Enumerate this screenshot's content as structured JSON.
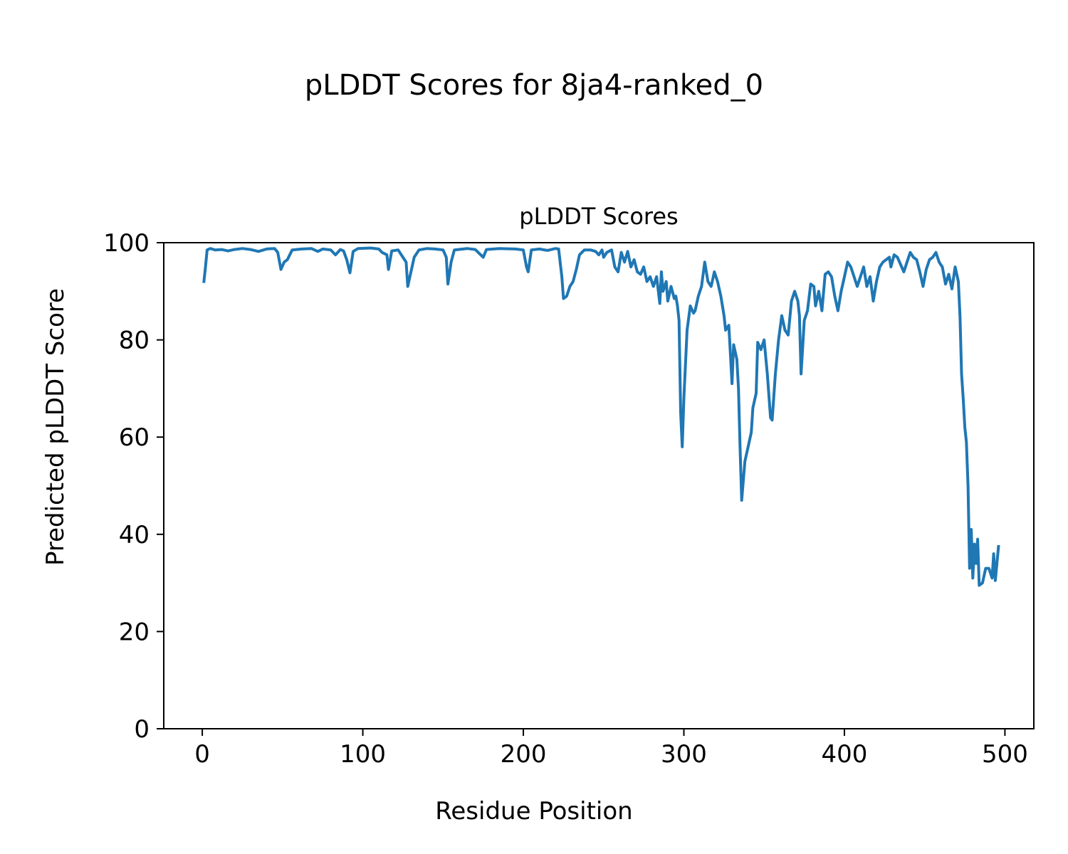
{
  "figure": {
    "suptitle": "pLDDT Scores for 8ja4-ranked_0"
  },
  "chart_data": {
    "type": "line",
    "title": "pLDDT Scores",
    "xlabel": "Residue Position",
    "ylabel": "Predicted pLDDT Score",
    "xlim": [
      -24,
      518
    ],
    "ylim": [
      0,
      100
    ],
    "xticks": [
      0,
      100,
      200,
      300,
      400,
      500
    ],
    "yticks": [
      0,
      20,
      40,
      60,
      80,
      100
    ],
    "grid": false,
    "line_color": "#1f77b4",
    "points": [
      [
        1,
        92
      ],
      [
        2,
        95
      ],
      [
        3,
        98.5
      ],
      [
        5,
        98.8
      ],
      [
        8,
        98.5
      ],
      [
        12,
        98.6
      ],
      [
        16,
        98.3
      ],
      [
        20,
        98.6
      ],
      [
        25,
        98.8
      ],
      [
        30,
        98.6
      ],
      [
        35,
        98.2
      ],
      [
        40,
        98.7
      ],
      [
        45,
        98.8
      ],
      [
        47,
        98
      ],
      [
        49,
        94.5
      ],
      [
        51,
        96
      ],
      [
        53,
        96.5
      ],
      [
        56,
        98.5
      ],
      [
        62,
        98.7
      ],
      [
        68,
        98.8
      ],
      [
        72,
        98.2
      ],
      [
        75,
        98.7
      ],
      [
        80,
        98.5
      ],
      [
        83,
        97.5
      ],
      [
        86,
        98.6
      ],
      [
        88,
        98.3
      ],
      [
        90,
        96.5
      ],
      [
        92,
        93.8
      ],
      [
        94,
        98.2
      ],
      [
        97,
        98.8
      ],
      [
        105,
        98.9
      ],
      [
        110,
        98.7
      ],
      [
        112,
        98
      ],
      [
        115,
        97.5
      ],
      [
        116,
        94.5
      ],
      [
        118,
        98.3
      ],
      [
        122,
        98.5
      ],
      [
        125,
        97
      ],
      [
        127,
        96
      ],
      [
        128,
        91
      ],
      [
        130,
        94
      ],
      [
        132,
        97
      ],
      [
        135,
        98.5
      ],
      [
        140,
        98.8
      ],
      [
        145,
        98.7
      ],
      [
        150,
        98.5
      ],
      [
        152,
        97
      ],
      [
        153,
        91.5
      ],
      [
        155,
        96
      ],
      [
        157,
        98.5
      ],
      [
        165,
        98.8
      ],
      [
        170,
        98.6
      ],
      [
        175,
        97
      ],
      [
        177,
        98.6
      ],
      [
        185,
        98.8
      ],
      [
        195,
        98.7
      ],
      [
        200,
        98.5
      ],
      [
        202,
        95
      ],
      [
        203,
        94
      ],
      [
        205,
        98.5
      ],
      [
        210,
        98.7
      ],
      [
        215,
        98.4
      ],
      [
        220,
        98.8
      ],
      [
        222,
        98.7
      ],
      [
        224,
        93
      ],
      [
        225,
        88.5
      ],
      [
        227,
        89
      ],
      [
        229,
        91
      ],
      [
        231,
        92
      ],
      [
        233,
        94.5
      ],
      [
        235,
        97.5
      ],
      [
        238,
        98.5
      ],
      [
        242,
        98.5
      ],
      [
        245,
        98.2
      ],
      [
        247,
        97.5
      ],
      [
        249,
        98.5
      ],
      [
        250,
        97
      ],
      [
        252,
        98
      ],
      [
        255,
        98.5
      ],
      [
        257,
        95
      ],
      [
        259,
        94
      ],
      [
        261,
        98
      ],
      [
        263,
        96
      ],
      [
        265,
        98.2
      ],
      [
        267,
        95
      ],
      [
        269,
        96.5
      ],
      [
        271,
        94
      ],
      [
        273,
        93.5
      ],
      [
        275,
        95
      ],
      [
        277,
        92
      ],
      [
        279,
        93
      ],
      [
        281,
        91
      ],
      [
        283,
        93
      ],
      [
        285,
        87.5
      ],
      [
        286,
        94
      ],
      [
        287,
        90
      ],
      [
        289,
        92
      ],
      [
        290,
        88
      ],
      [
        292,
        91
      ],
      [
        294,
        88.5
      ],
      [
        295,
        89
      ],
      [
        296,
        87
      ],
      [
        297,
        84
      ],
      [
        298,
        65
      ],
      [
        299,
        58
      ],
      [
        300,
        68
      ],
      [
        302,
        82
      ],
      [
        304,
        87
      ],
      [
        306,
        85.5
      ],
      [
        307,
        86
      ],
      [
        309,
        89
      ],
      [
        311,
        91
      ],
      [
        313,
        96
      ],
      [
        315,
        92
      ],
      [
        317,
        91
      ],
      [
        319,
        94
      ],
      [
        321,
        92
      ],
      [
        323,
        89
      ],
      [
        325,
        85
      ],
      [
        326,
        82
      ],
      [
        328,
        83
      ],
      [
        329,
        77
      ],
      [
        330,
        71
      ],
      [
        331,
        79
      ],
      [
        333,
        76
      ],
      [
        334,
        70
      ],
      [
        335,
        58
      ],
      [
        336,
        47
      ],
      [
        338,
        55
      ],
      [
        340,
        58
      ],
      [
        342,
        61
      ],
      [
        343,
        66
      ],
      [
        345,
        69
      ],
      [
        346,
        79.5
      ],
      [
        348,
        78
      ],
      [
        350,
        80
      ],
      [
        352,
        73
      ],
      [
        354,
        64
      ],
      [
        355,
        63.5
      ],
      [
        357,
        73
      ],
      [
        359,
        80
      ],
      [
        361,
        85
      ],
      [
        363,
        82
      ],
      [
        365,
        81
      ],
      [
        367,
        88
      ],
      [
        369,
        90
      ],
      [
        371,
        88
      ],
      [
        372,
        85
      ],
      [
        373,
        73
      ],
      [
        375,
        84
      ],
      [
        377,
        86
      ],
      [
        379,
        91.5
      ],
      [
        381,
        91
      ],
      [
        382,
        87
      ],
      [
        384,
        90
      ],
      [
        386,
        86
      ],
      [
        388,
        93.5
      ],
      [
        390,
        94
      ],
      [
        392,
        93
      ],
      [
        394,
        89
      ],
      [
        396,
        86
      ],
      [
        398,
        90
      ],
      [
        400,
        93
      ],
      [
        402,
        96
      ],
      [
        404,
        95
      ],
      [
        406,
        93
      ],
      [
        408,
        91
      ],
      [
        410,
        93
      ],
      [
        412,
        95
      ],
      [
        414,
        91
      ],
      [
        416,
        93
      ],
      [
        418,
        88
      ],
      [
        420,
        92
      ],
      [
        422,
        95
      ],
      [
        424,
        96
      ],
      [
        426,
        96.5
      ],
      [
        428,
        97
      ],
      [
        429,
        95
      ],
      [
        431,
        97.5
      ],
      [
        433,
        97
      ],
      [
        435,
        95.5
      ],
      [
        437,
        94
      ],
      [
        439,
        96
      ],
      [
        441,
        98
      ],
      [
        443,
        97
      ],
      [
        445,
        96.5
      ],
      [
        447,
        94
      ],
      [
        449,
        91
      ],
      [
        451,
        94.5
      ],
      [
        453,
        96.5
      ],
      [
        455,
        97
      ],
      [
        457,
        98
      ],
      [
        459,
        96
      ],
      [
        461,
        95
      ],
      [
        463,
        91.5
      ],
      [
        465,
        93.5
      ],
      [
        467,
        90.5
      ],
      [
        469,
        95
      ],
      [
        471,
        92
      ],
      [
        472,
        85
      ],
      [
        473,
        73
      ],
      [
        474,
        68
      ],
      [
        475,
        62
      ],
      [
        476,
        59
      ],
      [
        477,
        50
      ],
      [
        478,
        33
      ],
      [
        479,
        41
      ],
      [
        480,
        31
      ],
      [
        481,
        38
      ],
      [
        482,
        34
      ],
      [
        483,
        39
      ],
      [
        484,
        29.5
      ],
      [
        486,
        30
      ],
      [
        488,
        33
      ],
      [
        490,
        33
      ],
      [
        492,
        31
      ],
      [
        493,
        36
      ],
      [
        494,
        30.5
      ],
      [
        496,
        37.5
      ]
    ]
  }
}
